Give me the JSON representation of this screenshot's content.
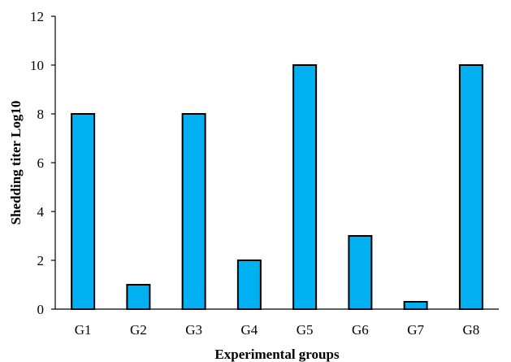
{
  "chart_data": {
    "type": "bar",
    "categories": [
      "G1",
      "G2",
      "G3",
      "G4",
      "G5",
      "G6",
      "G7",
      "G8"
    ],
    "values": [
      8,
      1,
      8,
      2,
      10,
      3,
      0.3,
      10
    ],
    "xlabel": "Experimental groups",
    "ylabel": "Shedding titer Log10",
    "ylim": [
      0,
      12
    ],
    "yticks": [
      0,
      2,
      4,
      6,
      8,
      10,
      12
    ],
    "bar_color": "#00b0f0",
    "bar_edge_color": "#000000",
    "grid": false,
    "legend": "none"
  }
}
